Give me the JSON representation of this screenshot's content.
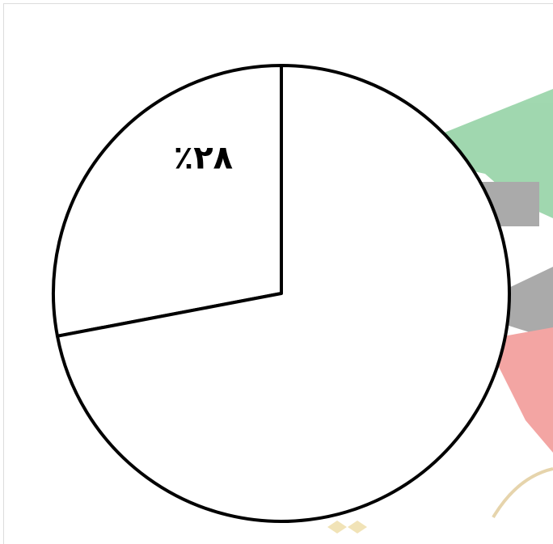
{
  "chart_data": {
    "type": "pie",
    "values": [
      28,
      72
    ],
    "value_labels": [
      "٪٢٨",
      null
    ],
    "colors": [
      "#ffffff",
      "#ffffff"
    ],
    "edge_color": "#000000",
    "start": "top",
    "direction": "counterclockwise"
  }
}
